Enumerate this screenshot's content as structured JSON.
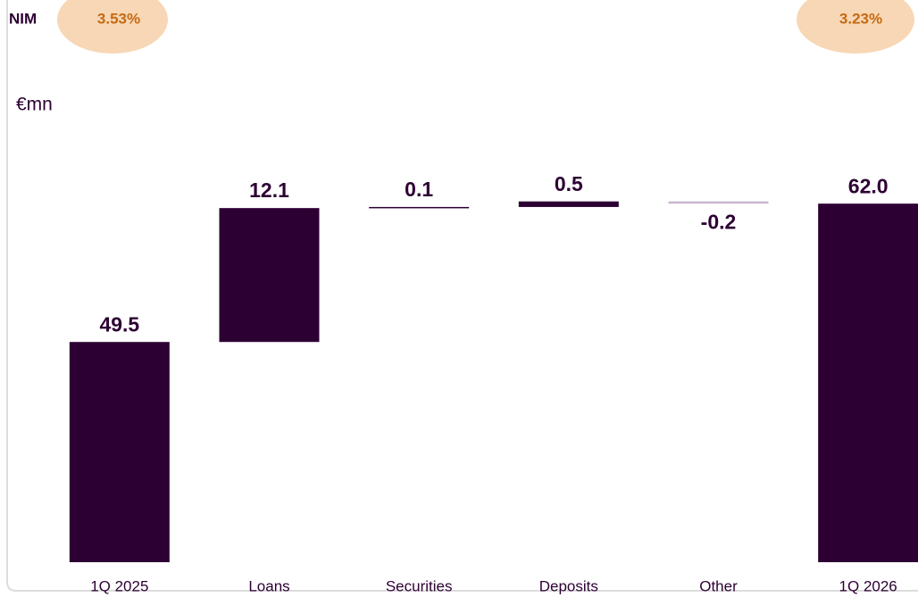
{
  "chart_data": {
    "type": "waterfall",
    "ylabel": "€mn",
    "categories": [
      "1Q 2025",
      "Loans",
      "Securities",
      "Deposits",
      "Other",
      "1Q 2026"
    ],
    "values": [
      49.5,
      12.1,
      0.1,
      0.5,
      -0.2,
      62.0
    ],
    "value_labels": [
      "49.5",
      "12.1",
      "0.1",
      "0.5",
      "-0.2",
      "62.0"
    ],
    "is_total": [
      true,
      false,
      false,
      false,
      false,
      true
    ],
    "color": "#2d0033",
    "negative_color": "#c9b5cd",
    "ylim": [
      29.6,
      65
    ],
    "annotations": {
      "nim_label": "NIM",
      "nim_start": "3.53%",
      "nim_end": "3.23%"
    }
  }
}
